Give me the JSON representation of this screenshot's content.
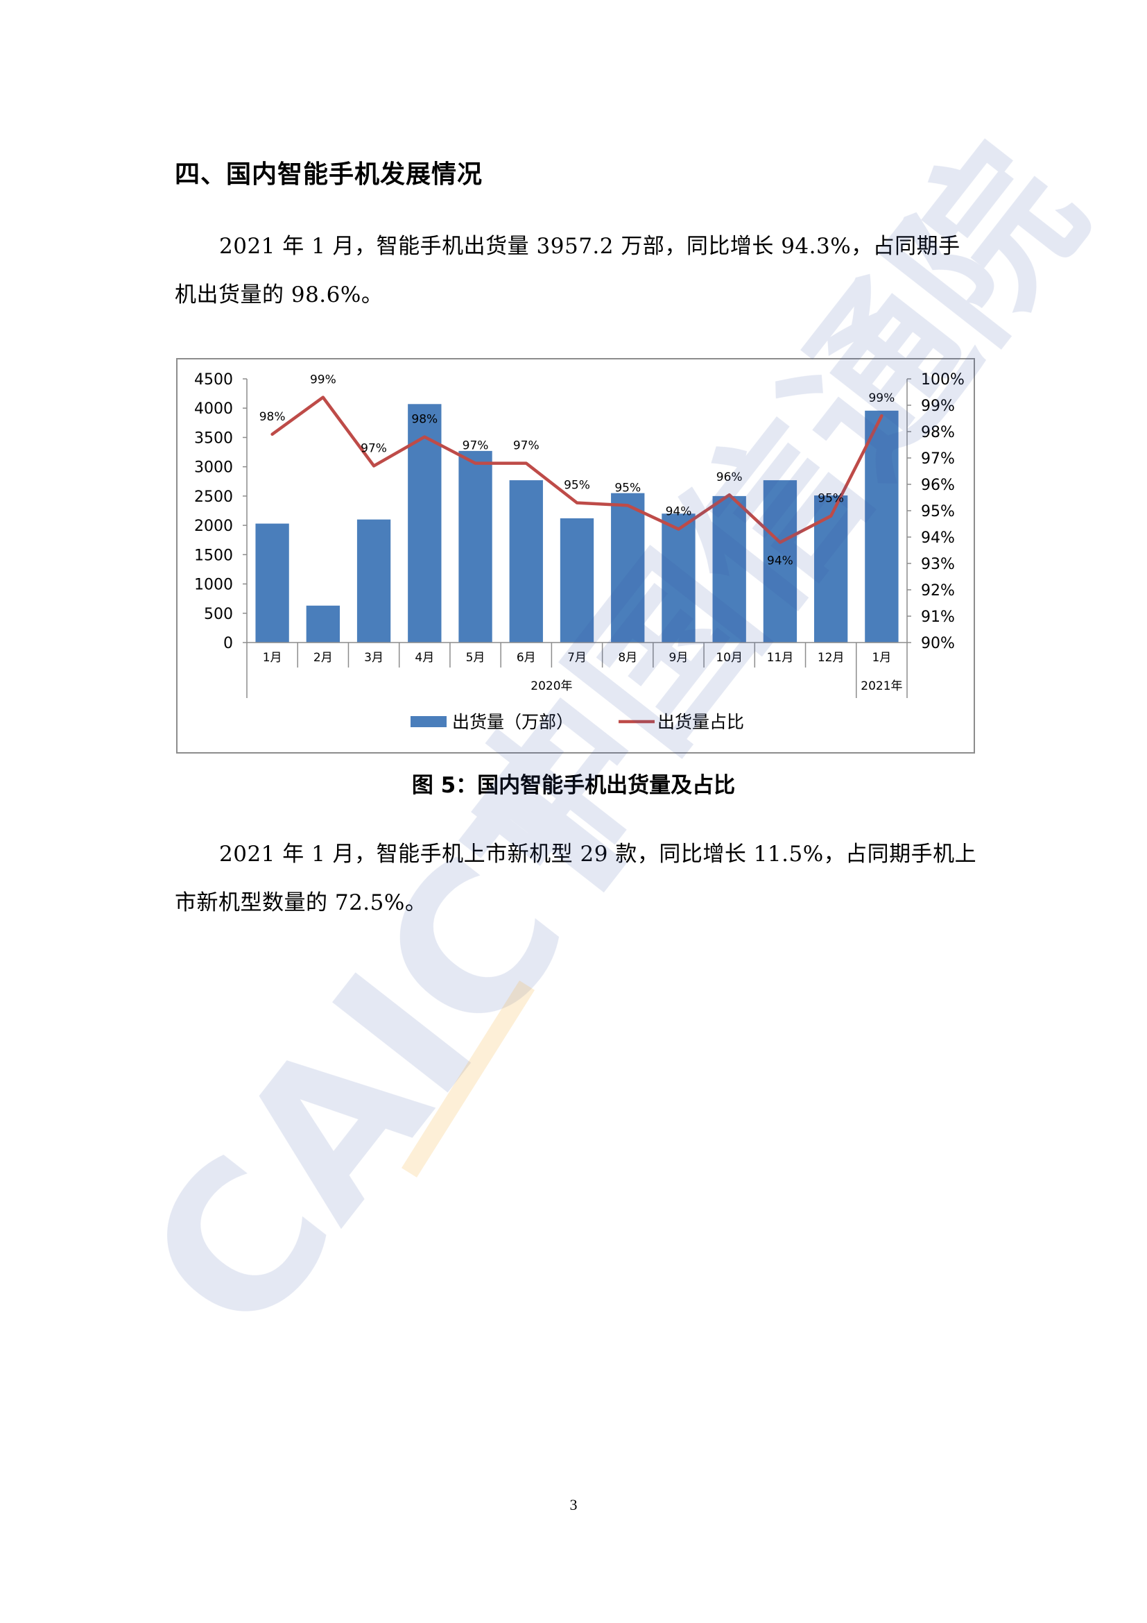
{
  "page": {
    "heading": "四、国内智能手机发展情况",
    "paragraph1": "2021 年 1 月，智能手机出货量 3957.2 万部，同比增长 94.3%，占同期手机出货量的 98.6%。",
    "figure_caption": "图 5：国内智能手机出货量及占比",
    "paragraph2": "2021 年 1 月，智能手机上市新机型 29 款，同比增长 11.5%，占同期手机上市新机型数量的 72.5%。",
    "page_number": "3",
    "watermark": {
      "text_cn": "中国信通院",
      "text_en": "CAICT",
      "color": "#3f5ba7",
      "accent_color": "#f5a623"
    }
  },
  "chart_data": {
    "type": "bar",
    "title": "",
    "categories": [
      "1月",
      "2月",
      "3月",
      "4月",
      "5月",
      "6月",
      "7月",
      "8月",
      "9月",
      "10月",
      "11月",
      "12月",
      "1月"
    ],
    "groups": [
      {
        "label": "2020年",
        "count": 12
      },
      {
        "label": "2021年",
        "count": 1
      }
    ],
    "series": [
      {
        "name": "出货量（万部）",
        "type": "bar",
        "axis": "left",
        "color": "#4a7ebb",
        "values": [
          2030,
          630,
          2100,
          4070,
          3270,
          2770,
          2120,
          2550,
          2200,
          2500,
          2770,
          2510,
          3957.2
        ]
      },
      {
        "name": "出货量占比",
        "type": "line",
        "axis": "right",
        "color": "#be4b48",
        "values": [
          97.9,
          99.3,
          96.7,
          97.8,
          96.8,
          96.8,
          95.3,
          95.2,
          94.3,
          95.6,
          93.8,
          94.8,
          98.6
        ],
        "data_labels": [
          "98%",
          "99%",
          "97%",
          "98%",
          "97%",
          "97%",
          "95%",
          "95%",
          "94%",
          "96%",
          "94%",
          "95%",
          "99%"
        ]
      }
    ],
    "y_left": {
      "min": 0,
      "max": 4500,
      "ticks": [
        "0",
        "500",
        "1000",
        "1500",
        "2000",
        "2500",
        "3000",
        "3500",
        "4000",
        "4500"
      ]
    },
    "y_right": {
      "min": 90,
      "max": 100,
      "ticks": [
        "90%",
        "91%",
        "92%",
        "93%",
        "94%",
        "95%",
        "96%",
        "97%",
        "98%",
        "99%",
        "100%"
      ]
    },
    "grid": false,
    "legend_position": "bottom"
  }
}
